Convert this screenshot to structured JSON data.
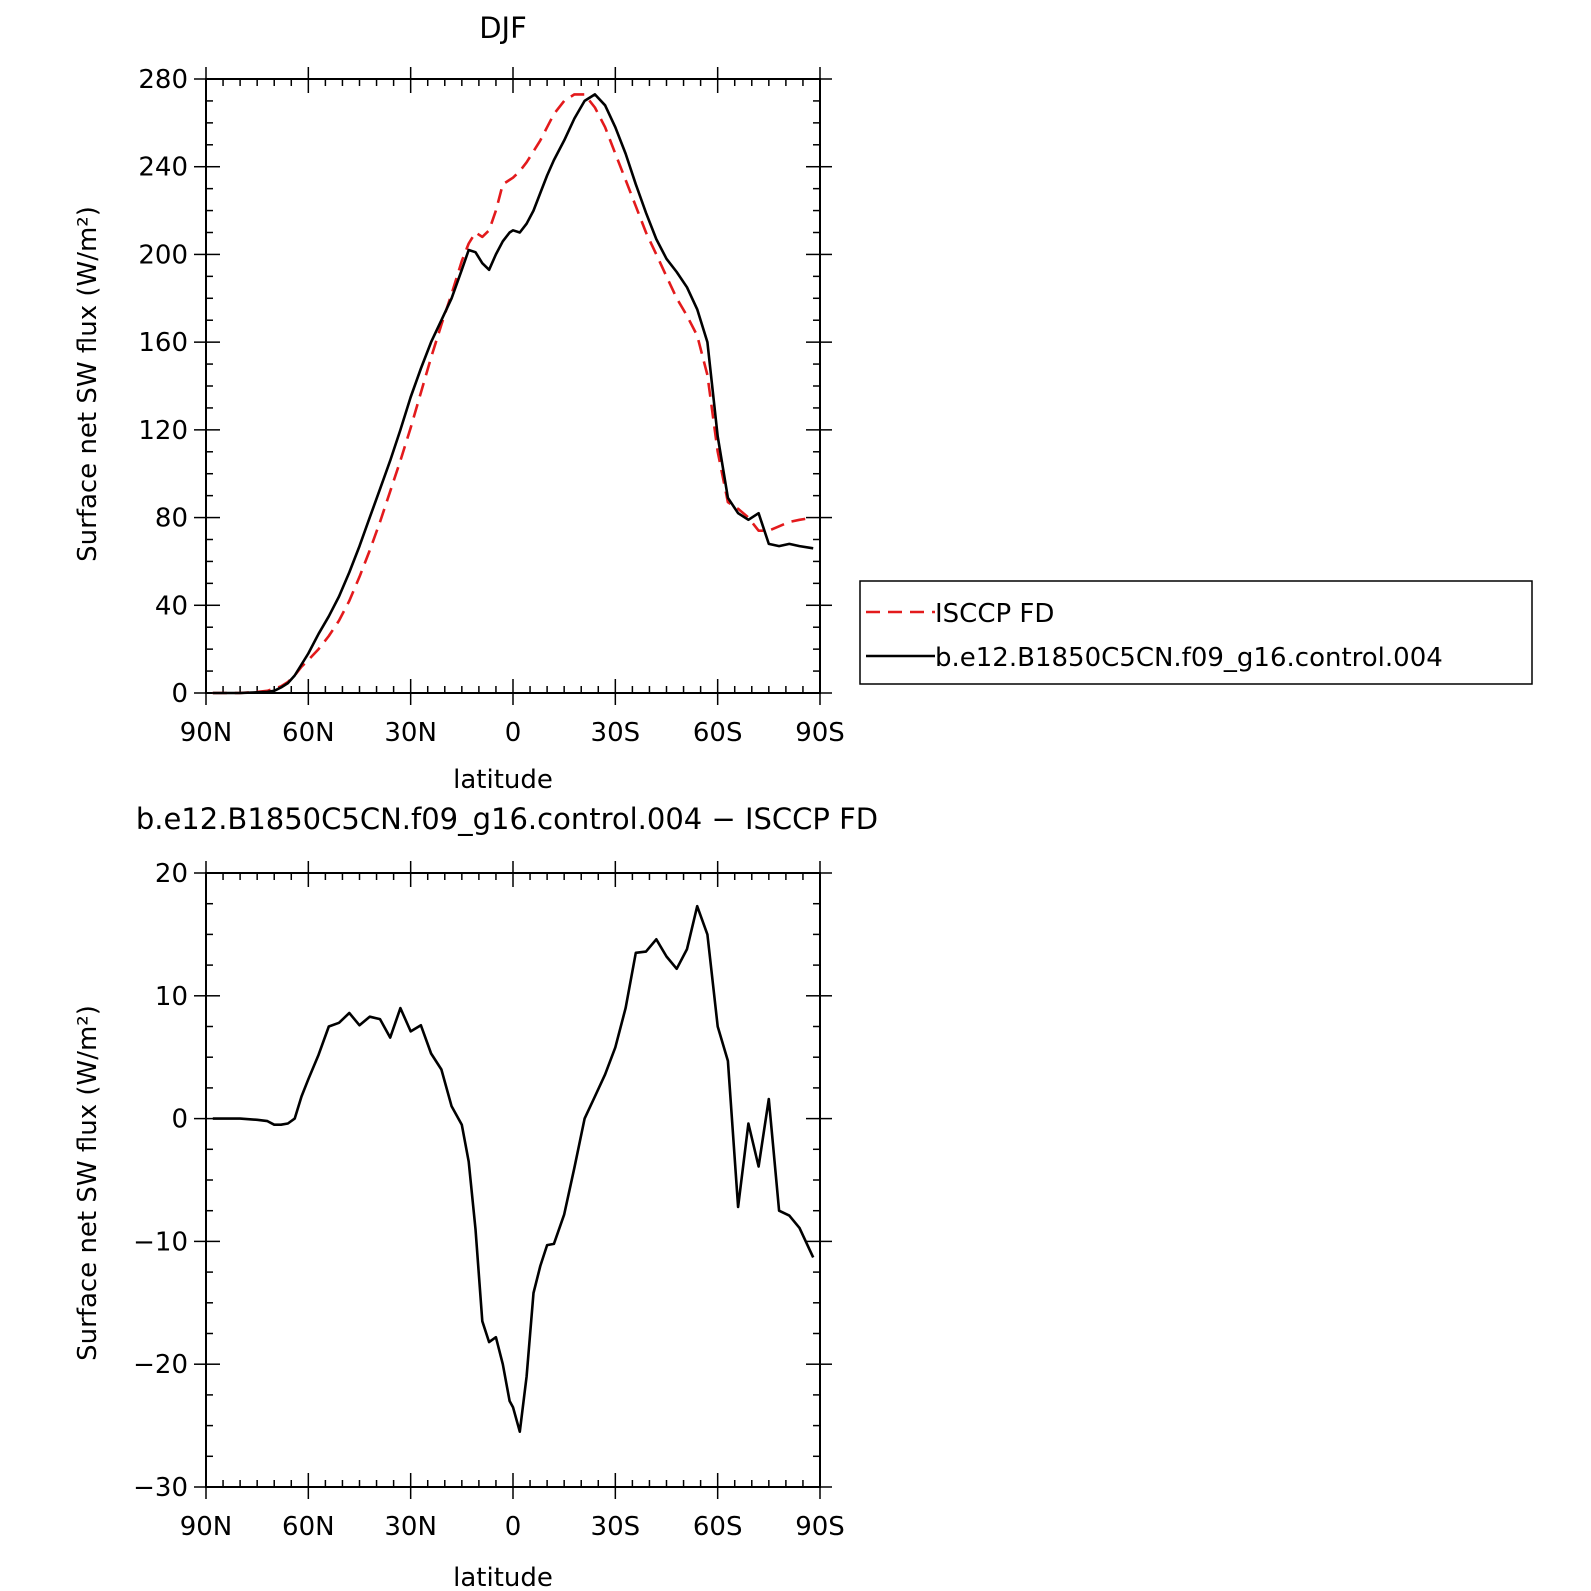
{
  "chart_data": [
    {
      "type": "line",
      "title": "DJF",
      "xlabel": "latitude",
      "ylabel": "Surface net SW flux (W/m²)",
      "x_range": [
        90,
        -90
      ],
      "x_ticks": [
        90,
        60,
        30,
        0,
        -30,
        -60,
        -90
      ],
      "x_tick_labels": [
        "90N",
        "60N",
        "30N",
        "0",
        "30S",
        "60S",
        "90S"
      ],
      "ylim": [
        0,
        280
      ],
      "y_ticks": [
        0,
        40,
        80,
        120,
        160,
        200,
        240,
        280
      ],
      "y_tick_labels": [
        "0",
        "40",
        "80",
        "120",
        "160",
        "200",
        "240",
        "280"
      ],
      "legend": {
        "placement": "right"
      },
      "series": [
        {
          "name": "ISCCP FD",
          "color": "#e31a1c",
          "style": "dashed",
          "x": [
            88,
            80,
            75,
            72,
            70,
            68,
            66,
            64,
            62,
            60,
            57,
            54,
            51,
            48,
            45,
            42,
            39,
            36,
            33,
            30,
            27,
            24,
            21,
            18,
            15,
            13,
            11,
            9,
            7,
            5,
            3,
            1,
            0,
            -2,
            -4,
            -6,
            -8,
            -10,
            -12,
            -15,
            -18,
            -21,
            -24,
            -27,
            -30,
            -33,
            -36,
            -39,
            -42,
            -45,
            -48,
            -51,
            -54,
            -57,
            -60,
            -63,
            -66,
            -69,
            -72,
            -75,
            -78,
            -81,
            -84,
            -88
          ],
          "values": [
            0,
            0,
            0.5,
            1,
            2,
            3,
            5,
            8,
            12,
            15,
            20,
            26,
            33,
            42,
            53,
            65,
            78,
            92,
            106,
            121,
            137,
            153,
            168,
            182,
            197,
            205,
            210,
            208,
            211,
            220,
            232,
            234,
            235,
            238,
            242,
            247,
            252,
            258,
            264,
            270,
            273,
            273,
            267,
            258,
            246,
            234,
            222,
            210,
            200,
            190,
            180,
            172,
            163,
            145,
            110,
            87,
            84,
            80,
            74,
            74,
            76,
            78,
            79,
            80
          ]
        },
        {
          "name": "b.e12.B1850C5CN.f09_g16.control.004",
          "color": "#000000",
          "style": "solid",
          "x": [
            88,
            80,
            75,
            72,
            70,
            68,
            66,
            64,
            62,
            60,
            57,
            54,
            51,
            48,
            45,
            42,
            39,
            36,
            33,
            30,
            27,
            24,
            21,
            18,
            15,
            13,
            11,
            9,
            7,
            5,
            3,
            1,
            0,
            -2,
            -4,
            -6,
            -8,
            -10,
            -12,
            -15,
            -18,
            -21,
            -24,
            -27,
            -30,
            -33,
            -36,
            -39,
            -42,
            -45,
            -48,
            -51,
            -54,
            -57,
            -60,
            -63,
            -66,
            -69,
            -72,
            -75,
            -78,
            -81,
            -84,
            -88
          ],
          "values": [
            0,
            0,
            0.3,
            0.5,
            1,
            2.5,
            4.5,
            8,
            13,
            18,
            27,
            35,
            44,
            55,
            67,
            80,
            93,
            106,
            120,
            135,
            148,
            160,
            170,
            180,
            193,
            202,
            201,
            196,
            193,
            200,
            206,
            210,
            211,
            210,
            214,
            220,
            228,
            236,
            243,
            252,
            262,
            270,
            273,
            268,
            258,
            246,
            232,
            219,
            207,
            198,
            192,
            185,
            175,
            160,
            117,
            89,
            82,
            79,
            82,
            68,
            67,
            68,
            67,
            66
          ]
        }
      ]
    },
    {
      "type": "line",
      "title": "b.e12.B1850C5CN.f09_g16.control.004 − ISCCP FD",
      "xlabel": "latitude",
      "ylabel": "Surface net SW flux (W/m²)",
      "x_range": [
        90,
        -90
      ],
      "x_ticks": [
        90,
        60,
        30,
        0,
        -30,
        -60,
        -90
      ],
      "x_tick_labels": [
        "90N",
        "60N",
        "30N",
        "0",
        "30S",
        "60S",
        "90S"
      ],
      "ylim": [
        -30,
        20
      ],
      "y_ticks": [
        -30,
        -20,
        -10,
        0,
        10,
        20
      ],
      "y_tick_labels": [
        "−30",
        "−20",
        "−10",
        "0",
        "10",
        "20"
      ],
      "series": [
        {
          "color": "#000000",
          "style": "solid",
          "x": [
            88,
            80,
            75,
            72,
            70,
            68,
            66,
            64,
            62,
            60,
            57,
            54,
            51,
            48,
            45,
            42,
            39,
            36,
            33,
            30,
            27,
            24,
            21,
            18,
            15,
            13,
            11,
            9,
            7,
            5,
            3,
            1,
            0,
            -2,
            -4,
            -6,
            -8,
            -10,
            -12,
            -15,
            -18,
            -21,
            -24,
            -27,
            -30,
            -33,
            -36,
            -39,
            -42,
            -45,
            -48,
            -51,
            -54,
            -57,
            -60,
            -63,
            -66,
            -69,
            -72,
            -75,
            -78,
            -81,
            -84,
            -88
          ],
          "values": [
            0,
            0,
            -0.1,
            -0.2,
            -0.5,
            -0.5,
            -0.4,
            0,
            1.8,
            3.2,
            5.2,
            7.5,
            7.8,
            8.6,
            7.6,
            8.3,
            8.1,
            6.6,
            9,
            7.1,
            7.6,
            5.3,
            4,
            1,
            -0.5,
            -3.5,
            -9,
            -16.5,
            -18.2,
            -17.8,
            -20,
            -23,
            -23.5,
            -25.5,
            -21,
            -14.2,
            -12,
            -10.3,
            -10.2,
            -7.8,
            -4,
            0,
            1.8,
            3.6,
            5.8,
            9,
            13.5,
            13.6,
            14.6,
            13.2,
            12.2,
            13.8,
            17.3,
            15,
            7.5,
            4.7,
            -7.2,
            -0.4,
            -3.9,
            1.6,
            -7.5,
            -7.9,
            -8.9,
            -11.3
          ]
        }
      ]
    }
  ]
}
